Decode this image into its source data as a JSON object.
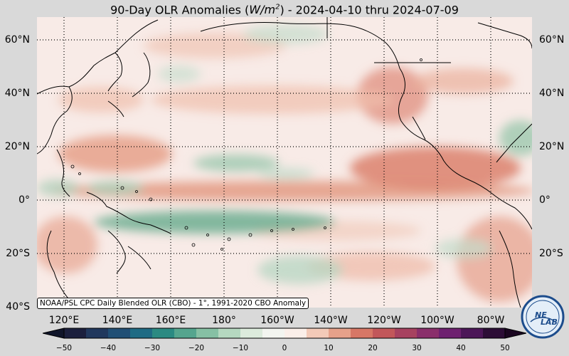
{
  "title": {
    "prefix": "90-Day OLR Anomalies (",
    "unit_base": "W/m",
    "unit_exp": "2",
    "suffix": ") - 2024-04-10 thru 2024-07-09"
  },
  "lat_labels": [
    "60°N",
    "40°N",
    "20°N",
    "0°",
    "20°S",
    "40°S"
  ],
  "lon_labels": [
    "120°E",
    "140°E",
    "160°E",
    "180°",
    "160°W",
    "140°W",
    "120°W",
    "100°W",
    "80°W"
  ],
  "credit": "NOAA/PSL CPC Daily Blended OLR (CBO) - 1°, 1991-2020 CBO Anomaly",
  "colorbar": {
    "labels": [
      "−50",
      "−40",
      "−30",
      "−20",
      "−10",
      "0",
      "10",
      "20",
      "30",
      "40",
      "50"
    ],
    "colors": [
      "#1b1f3d",
      "#21385d",
      "#214f75",
      "#1f6b84",
      "#2b8a82",
      "#55a58e",
      "#86c0a4",
      "#b5d8c0",
      "#dcebdc",
      "#f3f5f0",
      "#fbefe9",
      "#f3cab8",
      "#e6a18a",
      "#d77766",
      "#c2575a",
      "#a74260",
      "#8a2f6b",
      "#6e2170",
      "#4c1658",
      "#2c0d36"
    ],
    "under_color": "#10152a",
    "over_color": "#1a0620"
  },
  "logo": {
    "text_top": "NE",
    "text_bottom": "LAB",
    "colors": {
      "ring": "#1c4c8c",
      "fill": "#e4eef8"
    }
  },
  "map": {
    "ocean_base_color": "#f8ebe7",
    "grid": "on",
    "grid_style": "dotted"
  }
}
